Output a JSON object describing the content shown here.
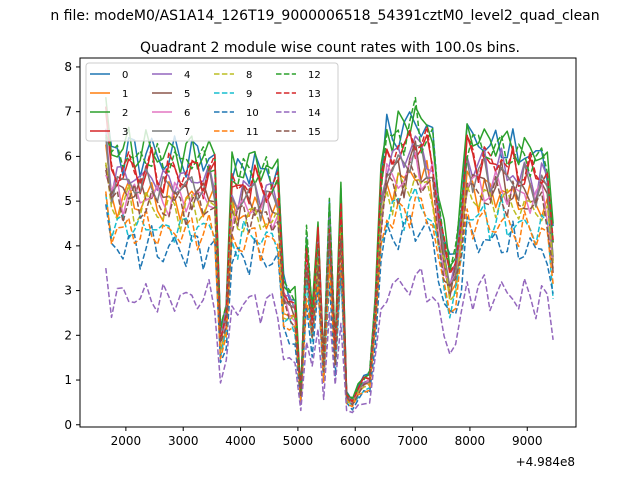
{
  "chart_data": {
    "type": "line",
    "suptitle": "n file: modeM0/AS1A14_126T19_9000006518_54391cztM0_level2_quad_clean",
    "title": "Quadrant 2 module wise count rates with 100.0s bins.",
    "xlabel": "",
    "ylabel": "",
    "xlim": [
      1200,
      9850
    ],
    "ylim": [
      -0.05,
      8.2
    ],
    "x_offset_label": "+4.984e8",
    "xticks": [
      2000,
      3000,
      4000,
      5000,
      6000,
      7000,
      8000,
      9000
    ],
    "xtick_labels": [
      "2000",
      "3000",
      "4000",
      "5000",
      "6000",
      "7000",
      "8000",
      "9000"
    ],
    "yticks": [
      0,
      1,
      2,
      3,
      4,
      5,
      6,
      7,
      8
    ],
    "ytick_labels": [
      "0",
      "1",
      "2",
      "3",
      "4",
      "5",
      "6",
      "7",
      "8"
    ],
    "x_start": 1650,
    "x_step": 100,
    "profile": [
      1.0,
      0.85,
      0.86,
      0.84,
      0.88,
      0.85,
      0.83,
      0.86,
      0.87,
      0.84,
      0.82,
      0.85,
      0.86,
      0.83,
      0.84,
      0.86,
      0.85,
      0.83,
      0.85,
      0.84,
      0.3,
      0.38,
      0.8,
      0.78,
      0.82,
      0.8,
      0.83,
      0.79,
      0.81,
      0.78,
      0.8,
      0.45,
      0.42,
      0.4,
      0.1,
      0.6,
      0.35,
      0.62,
      0.2,
      0.7,
      0.25,
      0.72,
      0.1,
      0.08,
      0.12,
      0.15,
      0.16,
      0.4,
      0.78,
      0.92,
      0.9,
      0.93,
      0.91,
      0.96,
      0.98,
      0.92,
      0.93,
      0.9,
      0.72,
      0.6,
      0.5,
      0.55,
      0.7,
      0.92,
      0.9,
      0.88,
      0.9,
      0.86,
      0.88,
      0.9,
      0.85,
      0.88,
      0.84,
      0.86,
      0.85,
      0.83,
      0.86,
      0.82,
      0.6
    ],
    "series": [
      {
        "name": "0",
        "color": "#1f77b4",
        "dash": "solid",
        "base": 7.1,
        "phase": 0
      },
      {
        "name": "1",
        "color": "#ff7f0e",
        "dash": "solid",
        "base": 5.9,
        "phase": 1.3
      },
      {
        "name": "2",
        "color": "#2ca02c",
        "dash": "solid",
        "base": 7.2,
        "phase": 2.1
      },
      {
        "name": "3",
        "color": "#d62728",
        "dash": "solid",
        "base": 6.6,
        "phase": 0.7
      },
      {
        "name": "4",
        "color": "#9467bd",
        "dash": "solid",
        "base": 6.5,
        "phase": 3.3
      },
      {
        "name": "5",
        "color": "#8c564b",
        "dash": "solid",
        "base": 6.1,
        "phase": 4.1
      },
      {
        "name": "6",
        "color": "#e377c2",
        "dash": "solid",
        "base": 6.0,
        "phase": 5.2
      },
      {
        "name": "7",
        "color": "#7f7f7f",
        "dash": "solid",
        "base": 6.3,
        "phase": 2.8
      },
      {
        "name": "8",
        "color": "#bcbd22",
        "dash": "dashed",
        "base": 5.7,
        "phase": 1.9
      },
      {
        "name": "9",
        "color": "#17becf",
        "dash": "dashed",
        "base": 5.2,
        "phase": 3.7
      },
      {
        "name": "10",
        "color": "#1f77b4",
        "dash": "dashed",
        "base": 4.65,
        "phase": 0.4
      },
      {
        "name": "11",
        "color": "#ff7f0e",
        "dash": "dashed",
        "base": 5.1,
        "phase": 2.5
      },
      {
        "name": "12",
        "color": "#2ca02c",
        "dash": "dashed",
        "base": 7.0,
        "phase": 4.6
      },
      {
        "name": "13",
        "color": "#d62728",
        "dash": "dashed",
        "base": 6.7,
        "phase": 1.1
      },
      {
        "name": "14",
        "color": "#9467bd",
        "dash": "dashed",
        "base": 3.35,
        "phase": 3.0
      },
      {
        "name": "15",
        "color": "#8c564b",
        "dash": "dashed",
        "base": 5.8,
        "phase": 5.7
      }
    ],
    "legend_position": "upper-left",
    "grid": false
  }
}
